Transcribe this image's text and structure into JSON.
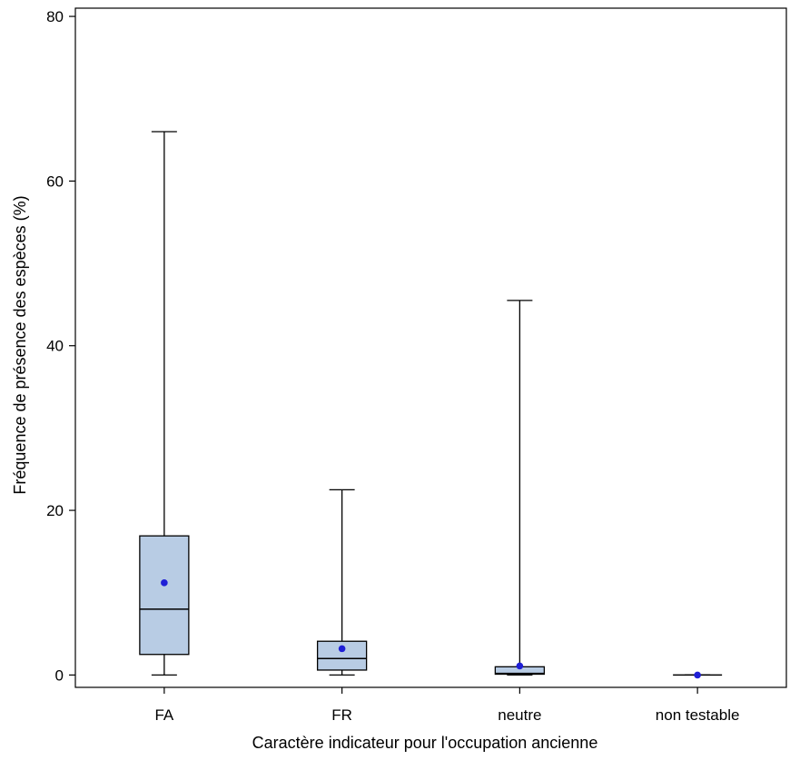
{
  "chart_data": {
    "type": "boxplot",
    "xlabel": "Caractère indicateur pour l'occupation ancienne",
    "ylabel": "Fréquence de présence des espèces (%)",
    "ylim": [
      -1.5,
      81
    ],
    "yticks": [
      0,
      20,
      40,
      60,
      80
    ],
    "grid": false,
    "categories": [
      "FA",
      "FR",
      "neutre",
      "non testable"
    ],
    "boxes": [
      {
        "category": "FA",
        "min": 0,
        "q1": 2.5,
        "median": 8,
        "q3": 16.9,
        "max": 66,
        "mean": 11.2
      },
      {
        "category": "FR",
        "min": 0,
        "q1": 0.6,
        "median": 2,
        "q3": 4.1,
        "max": 22.5,
        "mean": 3.2
      },
      {
        "category": "neutre",
        "min": 0,
        "q1": 0.1,
        "median": 0.2,
        "q3": 1,
        "max": 45.5,
        "mean": 1.1
      },
      {
        "category": "non testable",
        "min": 0,
        "q1": 0,
        "median": 0,
        "q3": 0,
        "max": 0,
        "mean": 0
      }
    ],
    "colors": {
      "box_fill": "#b8cce4",
      "box_stroke": "#000000",
      "mean_marker": "#1f1fd6",
      "axis": "#000000"
    }
  }
}
